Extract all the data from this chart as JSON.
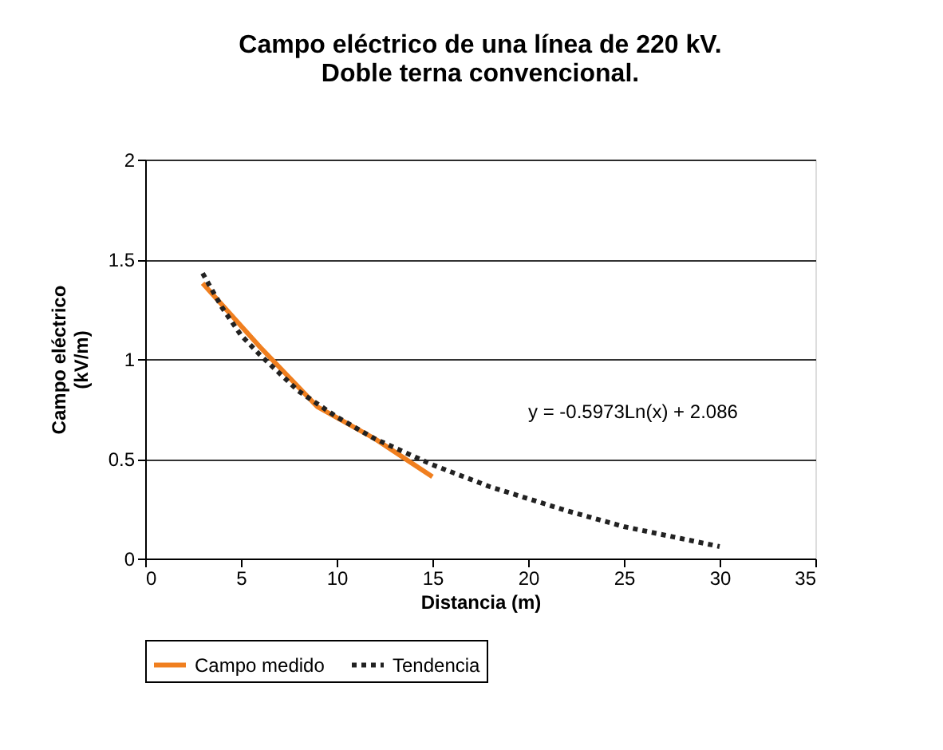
{
  "chart_data": {
    "type": "line",
    "title": "Campo eléctrico de una línea de 220 kV.\nDoble terna convencional.",
    "xlabel": "Distancia (m)",
    "ylabel": "Campo eléctrico\n(kV/m)",
    "xlim": [
      0,
      35
    ],
    "xticks": [
      0,
      5,
      10,
      15,
      20,
      25,
      30,
      35
    ],
    "ylim": [
      0,
      2
    ],
    "yticks": [
      0,
      0.5,
      1,
      1.5,
      2
    ],
    "grid": "y",
    "legend": "bottom",
    "marker": "none",
    "series": [
      {
        "name": "Campo medido",
        "color": "#f07f1f",
        "line_style": "solid",
        "x": [
          3,
          6,
          9,
          12,
          15
        ],
        "values": [
          1.38,
          1.06,
          0.76,
          0.6,
          0.41
        ]
      },
      {
        "name": "Tendencia",
        "color": "#222222",
        "line_style": "dotted",
        "x": [
          3,
          4,
          5,
          6,
          8,
          10,
          12,
          15,
          18,
          20,
          22,
          25,
          28,
          30
        ],
        "values": [
          1.43,
          1.26,
          1.12,
          1.02,
          0.84,
          0.71,
          0.6,
          0.47,
          0.36,
          0.3,
          0.24,
          0.16,
          0.1,
          0.06
        ]
      }
    ],
    "annotations": [
      "y = -0.5973Ln(x) + 2.086"
    ]
  }
}
